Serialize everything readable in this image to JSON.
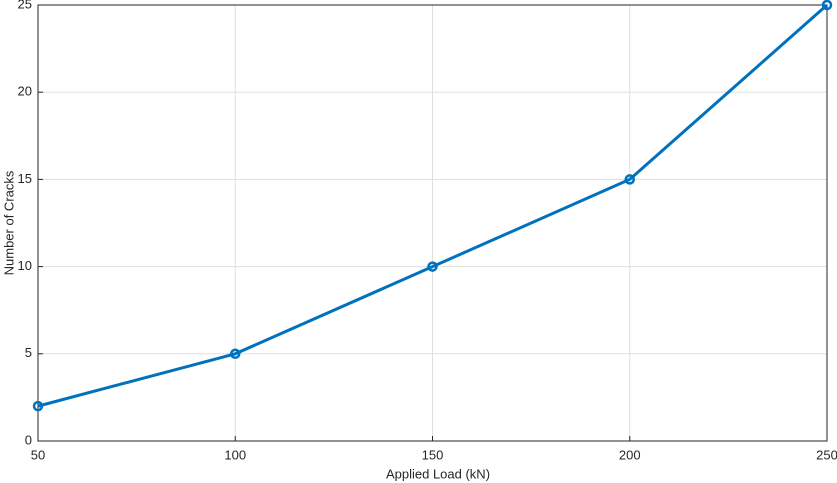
{
  "chart_data": {
    "type": "line",
    "xlabel": "Applied Load (kN)",
    "ylabel": "Number of Cracks",
    "x": [
      50,
      100,
      150,
      200,
      250
    ],
    "series": [
      {
        "color": "#0072bd",
        "values": [
          2,
          5,
          10,
          15,
          25
        ]
      }
    ],
    "xlim": [
      50,
      250
    ],
    "xticks": [
      50,
      100,
      150,
      200,
      250
    ],
    "ylim": [
      0,
      25
    ],
    "yticks": [
      0,
      5,
      10,
      15,
      20,
      25
    ],
    "grid": true,
    "markers": true
  }
}
